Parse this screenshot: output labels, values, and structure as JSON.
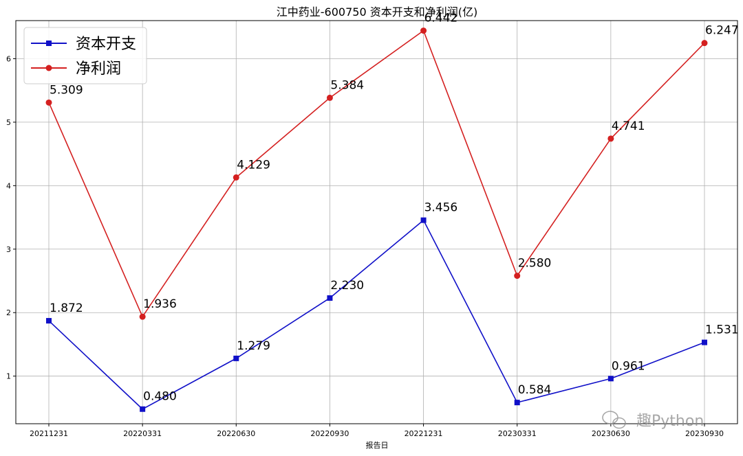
{
  "chart_data": {
    "type": "line",
    "title": "江中药业-600750 资本开支和净利润(亿)",
    "xlabel": "报告日",
    "ylabel": "",
    "categories": [
      "20211231",
      "20220331",
      "20220630",
      "20220930",
      "20221231",
      "20230331",
      "20230630",
      "20230930"
    ],
    "ylim": [
      0.25,
      6.6
    ],
    "yticks": [
      1,
      2,
      3,
      4,
      5,
      6
    ],
    "grid": true,
    "legend_position": "top-left",
    "series": [
      {
        "name": "资本开支",
        "color": "#1010c8",
        "marker": "square",
        "values": [
          1.872,
          0.48,
          1.279,
          2.23,
          3.456,
          0.584,
          0.961,
          1.531
        ],
        "labels": [
          "1.872",
          "0.480",
          "1.279",
          "2.230",
          "3.456",
          "0.584",
          "0.961",
          "1.531"
        ]
      },
      {
        "name": "净利润",
        "color": "#d42020",
        "marker": "circle",
        "values": [
          5.309,
          1.936,
          4.129,
          5.384,
          6.442,
          2.58,
          4.741,
          6.247
        ],
        "labels": [
          "5.309",
          "1.936",
          "4.129",
          "5.384",
          "6.442",
          "2.580",
          "4.741",
          "6.247"
        ]
      }
    ]
  },
  "watermark": "趣Python"
}
